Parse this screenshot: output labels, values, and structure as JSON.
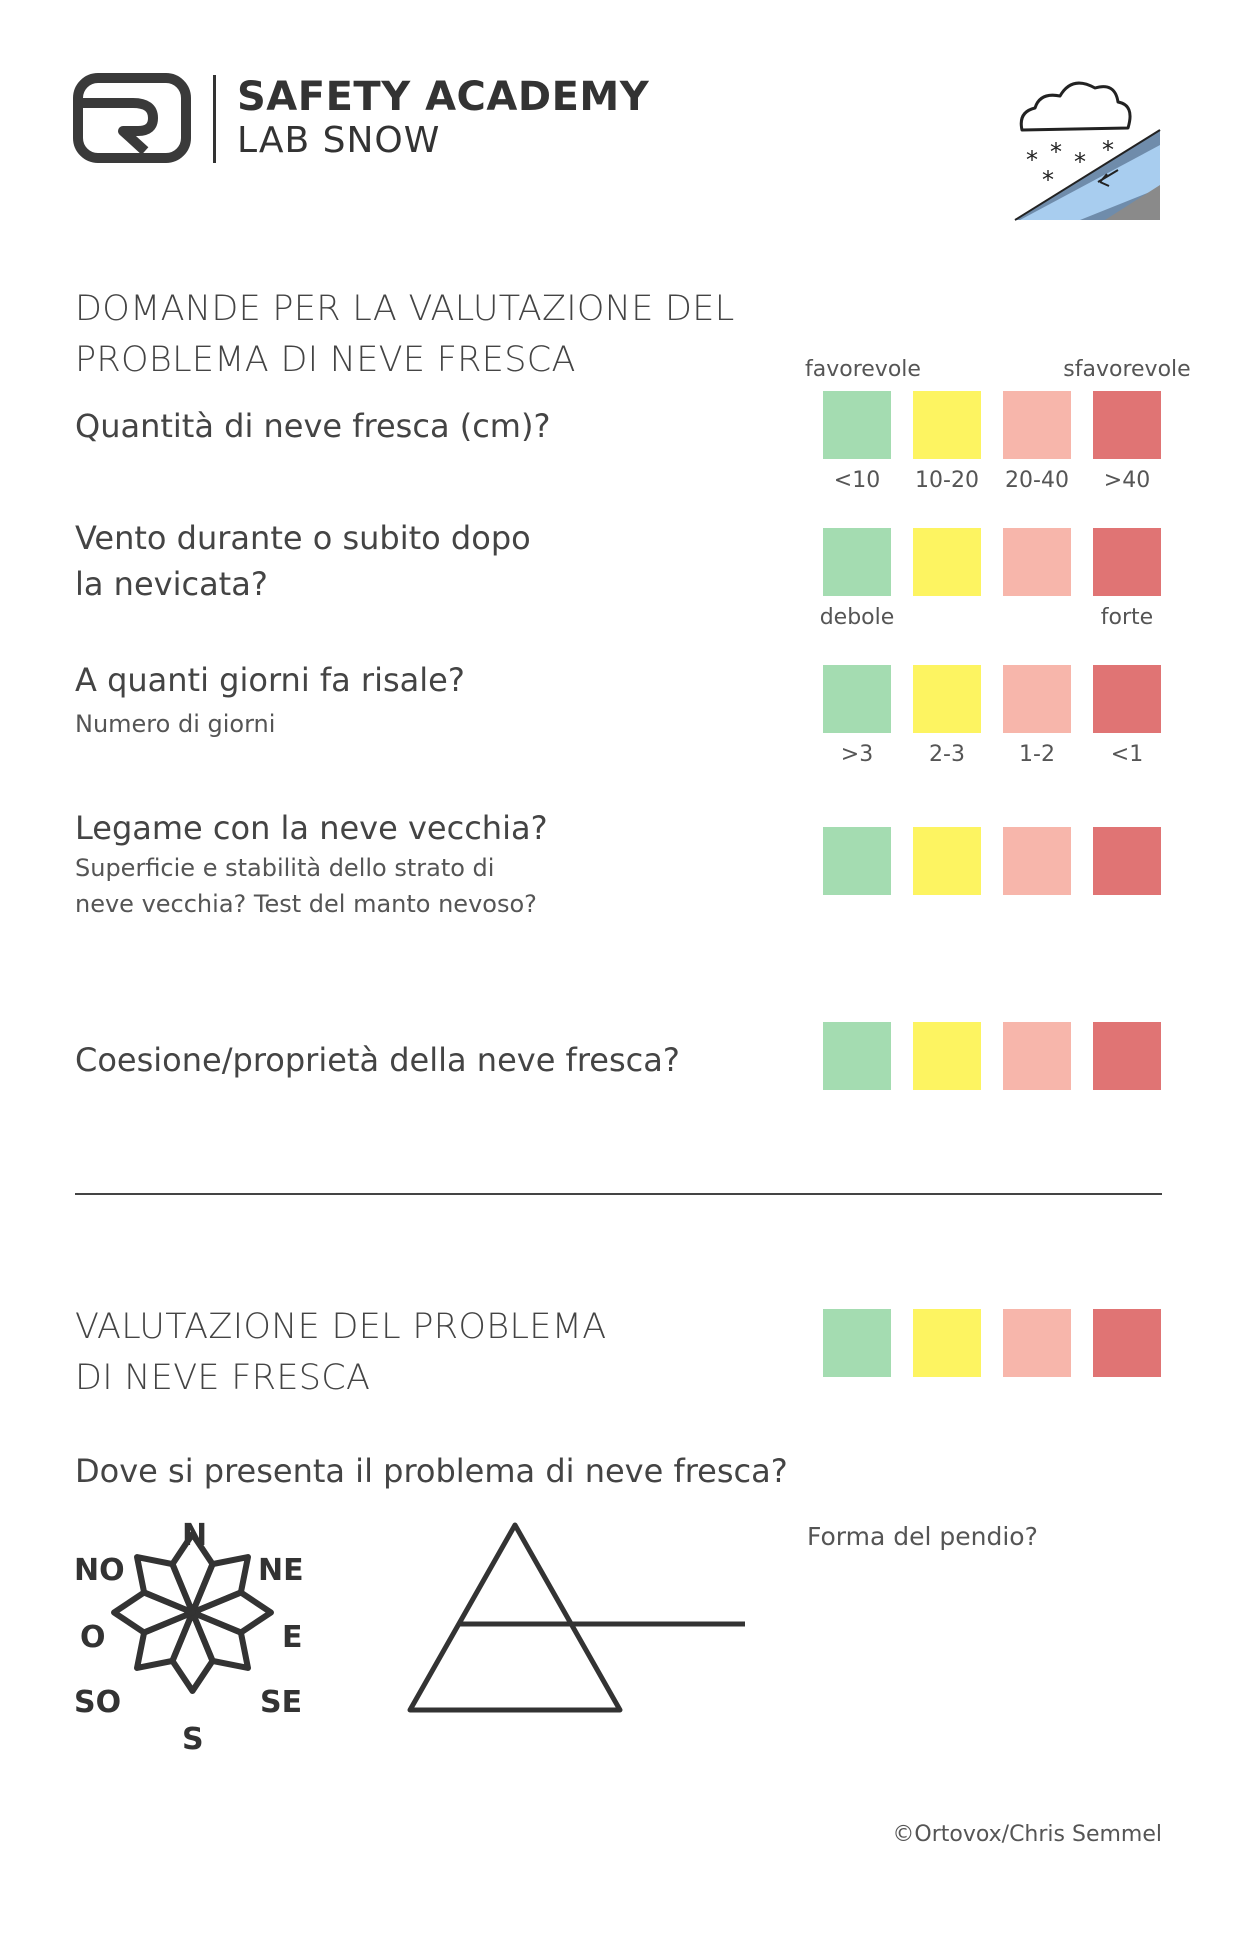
{
  "brand": {
    "title": "SAFETY ACADEMY",
    "subtitle": "LAB SNOW"
  },
  "heading": {
    "line1": "DOMANDE PER LA VALUTAZIONE DEL",
    "line2": "PROBLEMA DI NEVE FRESCA"
  },
  "scale": {
    "favorable": "favorevole",
    "unfavorable": "sfavorevole"
  },
  "colors": {
    "green": "#a4dcb1",
    "yellow": "#fdf461",
    "salmon": "#f7b6ab",
    "red": "#e07474"
  },
  "questions": [
    {
      "title": "Quantità di neve fresca (cm)?",
      "labels": [
        "<10",
        "10-20",
        "20-40",
        ">40"
      ]
    },
    {
      "title_line1": "Vento durante o subito dopo",
      "title_line2": "la nevicata?",
      "label_low": "debole",
      "label_high": "forte"
    },
    {
      "title": "A quanti giorni fa risale?",
      "subtitle": "Numero di giorni",
      "labels": [
        ">3",
        "2-3",
        "1-2",
        "<1"
      ]
    },
    {
      "title": "Legame con la neve vecchia?",
      "subtitle_line1": "Superficie e stabilità dello strato di",
      "subtitle_line2": "neve vecchia? Test del manto nevoso?"
    },
    {
      "title": "Coesione/proprietà della neve fresca?"
    }
  ],
  "assessment": {
    "line1": "VALUTAZIONE DEL PROBLEMA",
    "line2": "DI NEVE FRESCA"
  },
  "where": {
    "question": "Dove si presenta il problema di neve fresca?",
    "slope_shape": "Forma del pendio?"
  },
  "compass": {
    "n": "N",
    "ne": "NE",
    "e": "E",
    "se": "SE",
    "s": "S",
    "so": "SO",
    "o": "O",
    "no": "NO"
  },
  "icons": {
    "logo": "ortovox-logo-icon",
    "snowfall": "snowfall-slope-icon",
    "compass": "compass-rose-icon",
    "altitude": "altitude-triangle-icon"
  },
  "credit": "©Ortovox/Chris Semmel"
}
